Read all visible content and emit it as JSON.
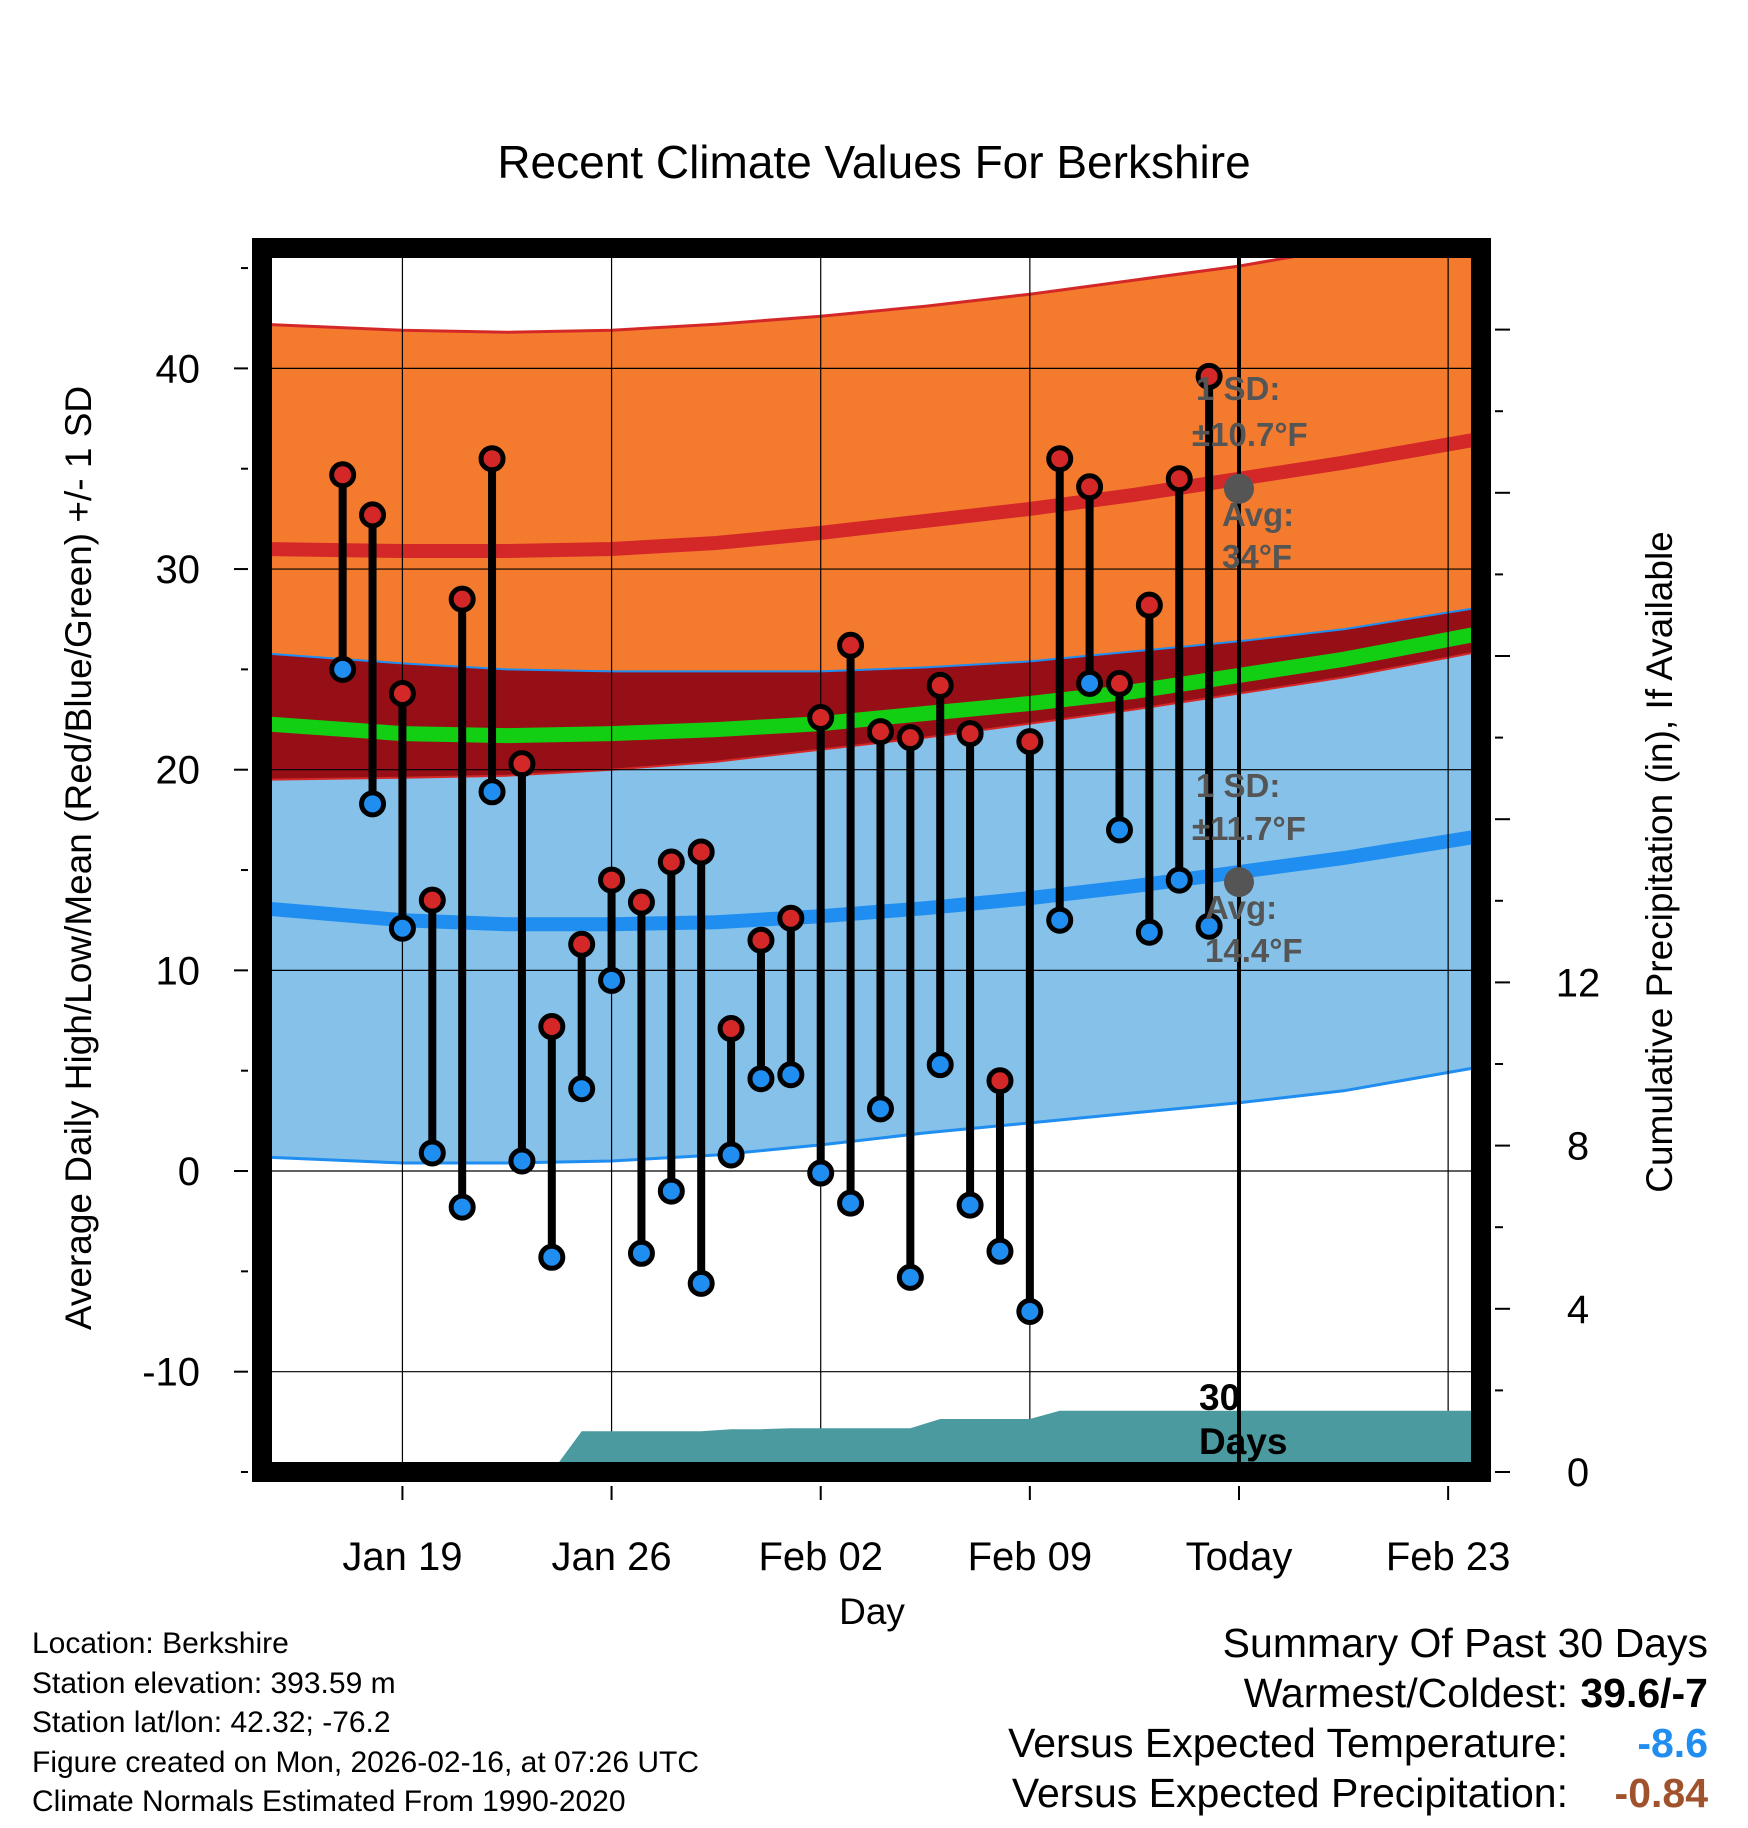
{
  "chart_data": {
    "type": "line",
    "title": "Recent Climate Values For Berkshire",
    "xlabel": "Day",
    "ylabel": "Average Daily High/Low/Mean (Red/Blue/Green) +/- 1 SD",
    "y2label": "Cumulative Precipitation (in), If Available",
    "ylim": [
      -15,
      46
    ],
    "y2lim": [
      0,
      30
    ],
    "yticks": [
      -10,
      0,
      10,
      20,
      30,
      40
    ],
    "y2ticks": [
      0,
      4,
      8,
      12
    ],
    "xlim": [
      -4.7,
      36.1
    ],
    "xticks": [
      {
        "day": 0,
        "label": "Jan 19"
      },
      {
        "day": 7,
        "label": "Jan 26"
      },
      {
        "day": 14,
        "label": "Feb 02"
      },
      {
        "day": 21,
        "label": "Feb 09"
      },
      {
        "day": 28,
        "label": "Today"
      },
      {
        "day": 35,
        "label": "Feb 23"
      }
    ],
    "today_day": 28,
    "normals": {
      "days": [
        -4.7,
        0,
        3.5,
        7,
        10.5,
        14,
        17.5,
        21,
        24.5,
        28,
        31.5,
        36.1
      ],
      "high_mean": [
        31.0,
        30.9,
        30.9,
        31.0,
        31.3,
        31.8,
        32.4,
        33.0,
        33.7,
        34.5,
        35.3,
        36.5
      ],
      "high_sd_upper": [
        42.2,
        41.9,
        41.8,
        41.9,
        42.2,
        42.6,
        43.1,
        43.7,
        44.4,
        45.1,
        46.0,
        47.2
      ],
      "high_sd_lower": [
        25.8,
        25.3,
        25.0,
        24.9,
        24.9,
        24.9,
        25.1,
        25.4,
        25.9,
        26.4,
        27.0,
        28.1
      ],
      "mean_mean": [
        22.3,
        21.8,
        21.7,
        21.8,
        22.0,
        22.3,
        22.8,
        23.3,
        23.9,
        24.7,
        25.5,
        26.8
      ],
      "low_mean": [
        13.1,
        12.5,
        12.3,
        12.3,
        12.4,
        12.7,
        13.1,
        13.6,
        14.2,
        14.9,
        15.6,
        16.7
      ],
      "low_sd_upper": [
        19.5,
        19.6,
        19.7,
        20.0,
        20.4,
        21.0,
        21.6,
        22.3,
        23.0,
        23.8,
        24.6,
        25.9
      ],
      "low_sd_lower": [
        0.7,
        0.4,
        0.4,
        0.5,
        0.8,
        1.3,
        1.9,
        2.4,
        2.9,
        3.4,
        4.0,
        5.2
      ]
    },
    "series": [
      {
        "name": "High",
        "color": "#d42828",
        "days": [
          -2,
          -1,
          0,
          1,
          2,
          3,
          4,
          5,
          6,
          7,
          8,
          9,
          10,
          11,
          12,
          13,
          14,
          15,
          16,
          17,
          18,
          19,
          20,
          21,
          22,
          23,
          24,
          25,
          26,
          27
        ],
        "values": [
          34.7,
          32.7,
          23.8,
          13.5,
          28.5,
          35.5,
          20.3,
          7.2,
          11.3,
          14.5,
          13.4,
          15.4,
          15.9,
          7.1,
          11.5,
          12.6,
          22.6,
          26.2,
          21.9,
          21.6,
          24.2,
          21.8,
          4.5,
          21.4,
          35.5,
          34.1,
          24.3,
          28.2,
          34.5,
          39.6
        ]
      },
      {
        "name": "Low",
        "color": "#1f8ef0",
        "days": [
          -2,
          -1,
          0,
          1,
          2,
          3,
          4,
          5,
          6,
          7,
          8,
          9,
          10,
          11,
          12,
          13,
          14,
          15,
          16,
          17,
          18,
          19,
          20,
          21,
          22,
          23,
          24,
          25,
          26,
          27
        ],
        "values": [
          25.0,
          18.3,
          12.1,
          0.9,
          -1.8,
          18.9,
          0.5,
          -4.3,
          4.1,
          9.5,
          -4.1,
          -1.0,
          -5.6,
          0.8,
          4.6,
          4.8,
          -0.1,
          -1.6,
          3.1,
          -5.3,
          5.3,
          -1.7,
          -4.0,
          -7.0,
          12.5,
          24.3,
          17.0,
          11.9,
          14.5,
          12.2
        ]
      },
      {
        "name": "Cumulative Precipitation",
        "color": "#4a9aa0",
        "days": [
          5,
          6,
          7,
          8,
          9,
          10,
          11,
          12,
          13,
          14,
          15,
          16,
          17,
          18,
          19,
          20,
          21,
          22,
          23,
          24,
          25,
          26,
          27,
          28,
          36.1
        ],
        "values": [
          0,
          1.0,
          1.0,
          1.0,
          1.0,
          1.0,
          1.05,
          1.05,
          1.07,
          1.07,
          1.07,
          1.07,
          1.07,
          1.3,
          1.3,
          1.3,
          1.3,
          1.5,
          1.5,
          1.5,
          1.5,
          1.5,
          1.5,
          1.5,
          1.5
        ]
      }
    ],
    "annotations": {
      "high_sd": "1 SD:",
      "high_sd_val": "±10.7°F",
      "high_avg": "Avg:",
      "high_avg_val": "34°F",
      "high_avg_point": 34.0,
      "low_sd": "1 SD:",
      "low_sd_val": "±11.7°F",
      "low_avg": "Avg:",
      "low_avg_val": "14.4°F",
      "low_avg_point": 14.4,
      "days_num": "30",
      "days_word": "Days"
    }
  },
  "footer": {
    "location": "Location: Berkshire",
    "elevation": "Station elevation: 393.59 m",
    "latlon": "Station lat/lon: 42.32; -76.2",
    "created": "Figure created on Mon, 2026-02-16, at 07:26 UTC",
    "normals": "Climate Normals Estimated From 1990-2020"
  },
  "summary": {
    "title": "Summary Of Past 30 Days",
    "warmest_label": "Warmest/Coldest:",
    "warmest_value": "39.6/-7",
    "temp_label": "Versus Expected Temperature:",
    "temp_value": "-8.6",
    "precip_label": "Versus Expected Precipitation:",
    "precip_value": "-0.84",
    "colors": {
      "warmest": "#000000",
      "temp": "#1f8ef0",
      "precip": "#a0522d"
    }
  },
  "colors": {
    "orange": "#f47b2e",
    "darkred": "#960f17",
    "green": "#13cf13",
    "lightblue": "#85c1e8",
    "blueline": "#1f8ef0",
    "redline": "#d42828",
    "teal": "#4a9aa0",
    "avgpoint": "#555555"
  }
}
